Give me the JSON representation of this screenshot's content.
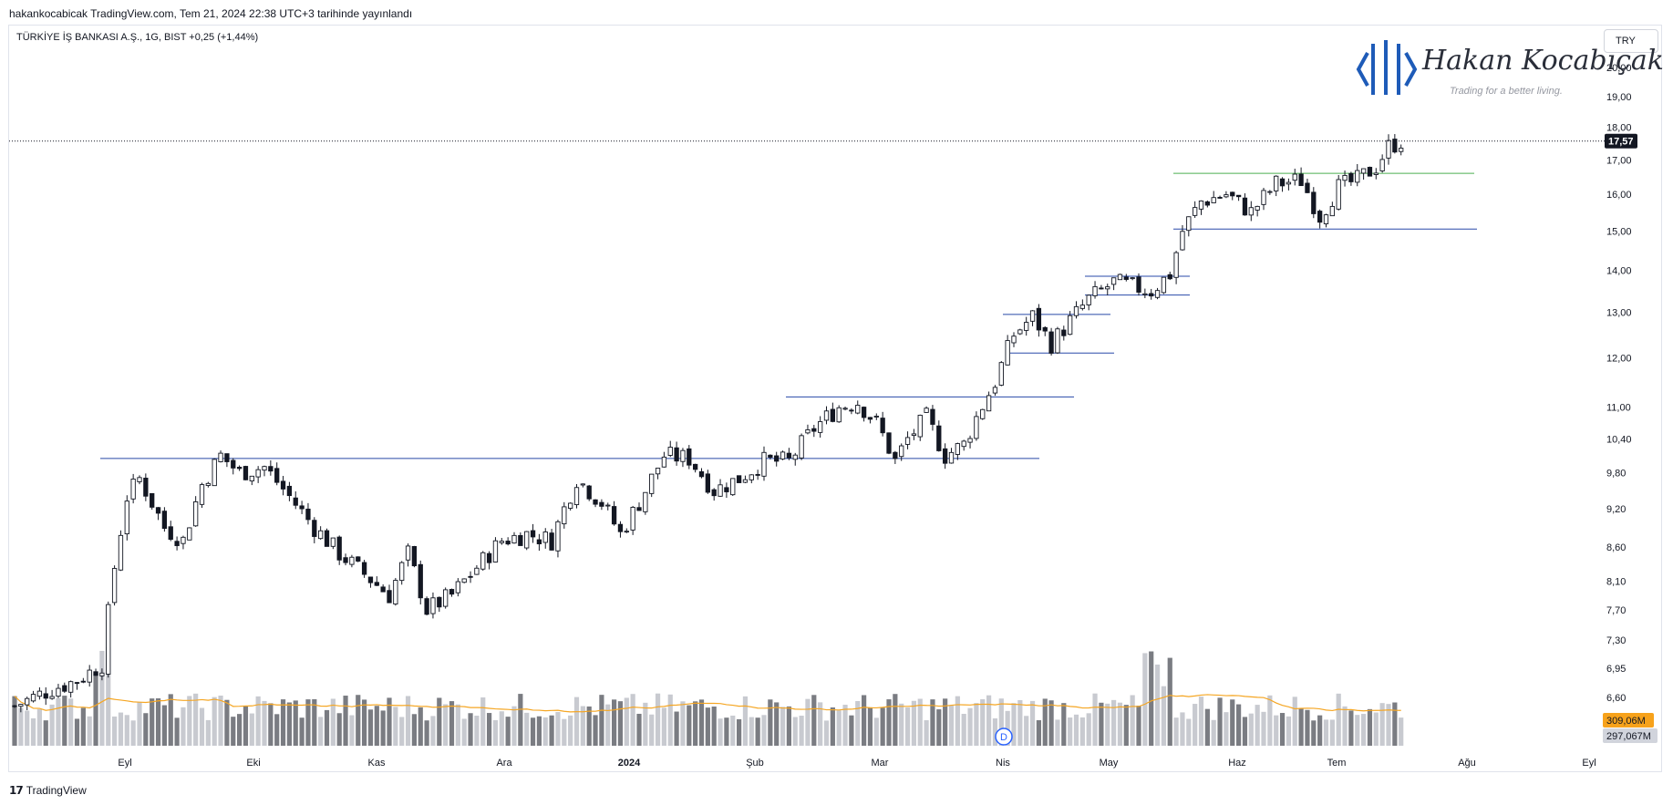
{
  "header": {
    "publish_line": "hakankocabicak TradingView.com, Tem 21, 2024 22:38 UTC+3 tarihinde yayınlandı"
  },
  "symbol": {
    "line": "TÜRKİYE İŞ BANKASI A.Ş., 1G, BIST  +0,25 (+1,44%)"
  },
  "currency": {
    "label": "TRY"
  },
  "brand": {
    "name": "Hakan Kocabıçak",
    "tagline": "Trading for a better living."
  },
  "footer": {
    "brand": "TradingView"
  },
  "colors": {
    "up_candle": "#ffffff",
    "down_candle": "#131722",
    "support_line": "#2849a8",
    "breakout_line": "#4caf50",
    "volume_ma": "#f5a623",
    "volume_up": "#c8cad0",
    "volume_down": "#7a7c82",
    "last_price_tag": "#131722",
    "volume_ma_tag": "#f7a21b"
  },
  "chart_data": {
    "type": "candlestick",
    "symbol": "TÜRKİYE İŞ BANKASI A.Ş.",
    "interval": "1G",
    "exchange": "BIST",
    "change": "+0,25 (+1,44%)",
    "last_price": "17,57",
    "y_scale": "log",
    "y_ticks": [
      "20,00",
      "19,00",
      "18,00",
      "17,00",
      "16,00",
      "15,00",
      "14,00",
      "13,00",
      "12,00",
      "11,00",
      "10,40",
      "9,80",
      "9,20",
      "8,60",
      "8,10",
      "7,70",
      "7,30",
      "6,95",
      "6,60"
    ],
    "x_ticks": [
      "Eyl",
      "Eki",
      "Kas",
      "Ara",
      "2024",
      "Şub",
      "Mar",
      "Nis",
      "May",
      "Haz",
      "Tem",
      "Ağu",
      "Eyl"
    ],
    "volume_labels": {
      "volume_ma": "309,06M",
      "volume": "297,067M"
    },
    "event_marker": "D",
    "horizontal_levels": [
      {
        "price": 10.05,
        "from": "Ağu",
        "to": "Nis"
      },
      {
        "price": 11.2,
        "from": "Şub",
        "to": "Nis"
      },
      {
        "price": 12.95,
        "from": "Nis",
        "to": "May"
      },
      {
        "price": 12.1,
        "from": "Nis",
        "to": "May"
      },
      {
        "price": 13.85,
        "from": "May",
        "to": "May"
      },
      {
        "price": 13.4,
        "from": "May",
        "to": "May"
      },
      {
        "price": 16.6,
        "from": "May",
        "to": "Tem",
        "color": "green"
      },
      {
        "price": 15.05,
        "from": "May",
        "to": "Tem"
      }
    ],
    "price_path": [
      [
        0,
        6.5
      ],
      [
        6,
        6.7
      ],
      [
        10,
        6.8
      ],
      [
        14,
        7.0
      ],
      [
        16,
        8.3
      ],
      [
        18,
        9.4
      ],
      [
        20,
        9.7
      ],
      [
        24,
        8.9
      ],
      [
        27,
        8.7
      ],
      [
        30,
        9.6
      ],
      [
        33,
        10.1
      ],
      [
        36,
        9.8
      ],
      [
        40,
        9.9
      ],
      [
        44,
        9.4
      ],
      [
        48,
        8.9
      ],
      [
        52,
        8.5
      ],
      [
        56,
        8.2
      ],
      [
        60,
        7.9
      ],
      [
        63,
        8.5
      ],
      [
        66,
        7.7
      ],
      [
        70,
        7.9
      ],
      [
        74,
        8.3
      ],
      [
        78,
        8.7
      ],
      [
        82,
        8.8
      ],
      [
        86,
        8.7
      ],
      [
        90,
        9.7
      ],
      [
        94,
        9.3
      ],
      [
        97,
        8.8
      ],
      [
        100,
        9.3
      ],
      [
        104,
        10.1
      ],
      [
        108,
        10.05
      ],
      [
        112,
        9.5
      ],
      [
        116,
        9.7
      ],
      [
        120,
        10.0
      ],
      [
        124,
        10.0
      ],
      [
        128,
        10.6
      ],
      [
        132,
        11.0
      ],
      [
        135,
        11.1
      ],
      [
        138,
        10.7
      ],
      [
        141,
        10.0
      ],
      [
        143,
        10.4
      ],
      [
        146,
        10.8
      ],
      [
        149,
        10.1
      ],
      [
        152,
        10.3
      ],
      [
        154,
        10.8
      ],
      [
        157,
        11.5
      ],
      [
        160,
        12.5
      ],
      [
        163,
        12.9
      ],
      [
        166,
        12.3
      ],
      [
        169,
        12.8
      ],
      [
        172,
        13.3
      ],
      [
        176,
        13.7
      ],
      [
        179,
        13.6
      ],
      [
        182,
        13.5
      ],
      [
        185,
        13.9
      ],
      [
        187,
        15.0
      ],
      [
        190,
        15.8
      ],
      [
        194,
        16.0
      ],
      [
        198,
        15.5
      ],
      [
        202,
        16.3
      ],
      [
        206,
        16.4
      ],
      [
        209,
        15.4
      ],
      [
        212,
        16.2
      ],
      [
        215,
        16.4
      ],
      [
        218,
        16.8
      ],
      [
        220,
        17.4
      ],
      [
        222,
        17.57
      ]
    ]
  }
}
